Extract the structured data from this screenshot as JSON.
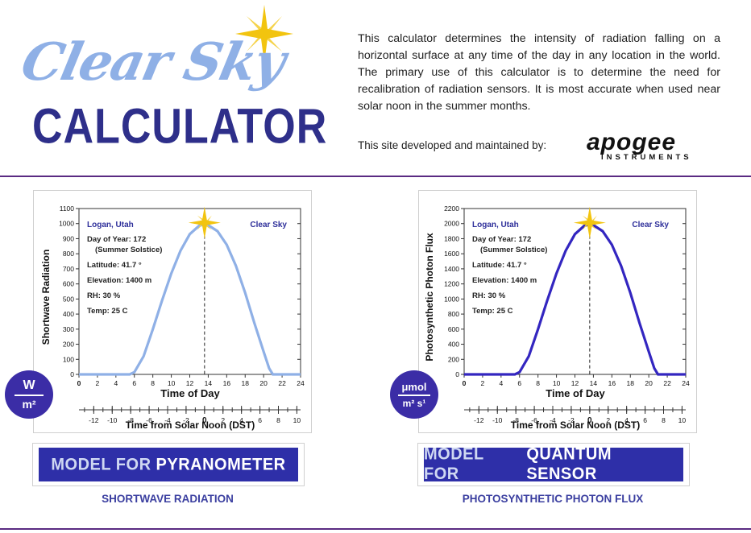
{
  "logo": {
    "script": "Clear Sky",
    "block": "CALCULATOR"
  },
  "intro": "This calculator determines the intensity of radiation falling on a horizontal surface at any time of the day in any location in the world. The primary use of this calculator is to determine the need for recalibration of radiation sensors. It is most accurate when used near solar noon in the summer months.",
  "developer": {
    "label": "This site developed and maintained by:",
    "brand": "apogee",
    "brand_sub": "INSTRUMENTS"
  },
  "colors": {
    "accent": "#2e2fa8",
    "divider": "#5a2b82",
    "caption": "#3b3fa0",
    "sw_curve": "#8fb0e6",
    "ppf_curve": "#3326c0"
  },
  "charts": {
    "shortwave": {
      "location": "Logan, Utah",
      "sky": "Clear Sky",
      "info": [
        "Day of Year: 172",
        "(Summer Solstice)",
        "Latitude: 41.7 °",
        "Elevation: 1400 m",
        "RH: 30 %",
        "Temp: 25 C"
      ],
      "ylabel": "Shortwave Radiation",
      "xlabel": "Time of Day",
      "x2label": "Time from Solar Noon (DST)",
      "unit_top": "W",
      "unit_bottom": "m²",
      "button_prefix": "MODEL FOR",
      "button_highlight": "PYRANOMETER",
      "caption": "SHORTWAVE RADIATION"
    },
    "ppf": {
      "location": "Logan, Utah",
      "sky": "Clear Sky",
      "info": [
        "Day of Year: 172",
        "(Summer Solstice)",
        "Latitude: 41.7 °",
        "Elevation: 1400 m",
        "RH: 30 %",
        "Temp: 25 C"
      ],
      "ylabel": "Photosynthetic Photon Flux",
      "xlabel": "Time of Day",
      "x2label": "Time from Solar Noon (DST)",
      "unit_top": "μmol",
      "unit_bottom": "m² s¹",
      "button_prefix": "MODEL FOR",
      "button_highlight": "QUANTUM SENSOR",
      "caption": "PHOTOSYNTHETIC PHOTON FLUX"
    }
  },
  "chart_data": [
    {
      "type": "line",
      "xlabel": "Time of Day",
      "ylabel": "Shortwave Radiation",
      "x_ticks": [
        0,
        2,
        4,
        6,
        8,
        10,
        12,
        14,
        16,
        18,
        20,
        22,
        24
      ],
      "x2_ticks": [
        -12,
        -10,
        -8,
        -6,
        -4,
        -2,
        0,
        2,
        4,
        6,
        8,
        10
      ],
      "y_ticks": [
        0,
        100,
        200,
        300,
        400,
        500,
        600,
        700,
        800,
        900,
        1000,
        1100
      ],
      "xlim": [
        0,
        24
      ],
      "ylim": [
        0,
        1100
      ],
      "x2lim": [
        -13.6,
        10.4
      ],
      "solar_noon": 13.6,
      "x": [
        0,
        5.5,
        6,
        7,
        8,
        9,
        10,
        11,
        12,
        13,
        13.6,
        14,
        15,
        16,
        17,
        18,
        19,
        20,
        20.6,
        21,
        24
      ],
      "y": [
        0,
        0,
        15,
        120,
        300,
        490,
        670,
        820,
        930,
        985,
        995,
        990,
        950,
        860,
        720,
        540,
        340,
        150,
        40,
        0,
        0
      ]
    },
    {
      "type": "line",
      "xlabel": "Time of Day",
      "ylabel": "Photosynthetic Photon Flux",
      "x_ticks": [
        0,
        2,
        4,
        6,
        8,
        10,
        12,
        14,
        16,
        18,
        20,
        22,
        24
      ],
      "x2_ticks": [
        -12,
        -10,
        -8,
        -6,
        -4,
        -2,
        0,
        2,
        4,
        6,
        8,
        10
      ],
      "y_ticks": [
        0,
        200,
        400,
        600,
        800,
        1000,
        1200,
        1400,
        1600,
        1800,
        2000,
        2200
      ],
      "xlim": [
        0,
        24
      ],
      "ylim": [
        0,
        2200
      ],
      "x2lim": [
        -13.6,
        10.4
      ],
      "solar_noon": 13.6,
      "x": [
        0,
        5.5,
        6,
        7,
        8,
        9,
        10,
        11,
        12,
        13,
        13.6,
        14,
        15,
        16,
        17,
        18,
        19,
        20,
        20.6,
        21,
        24
      ],
      "y": [
        0,
        0,
        30,
        240,
        600,
        980,
        1340,
        1640,
        1860,
        1970,
        1990,
        1980,
        1900,
        1720,
        1440,
        1080,
        680,
        300,
        80,
        0,
        0
      ]
    }
  ]
}
